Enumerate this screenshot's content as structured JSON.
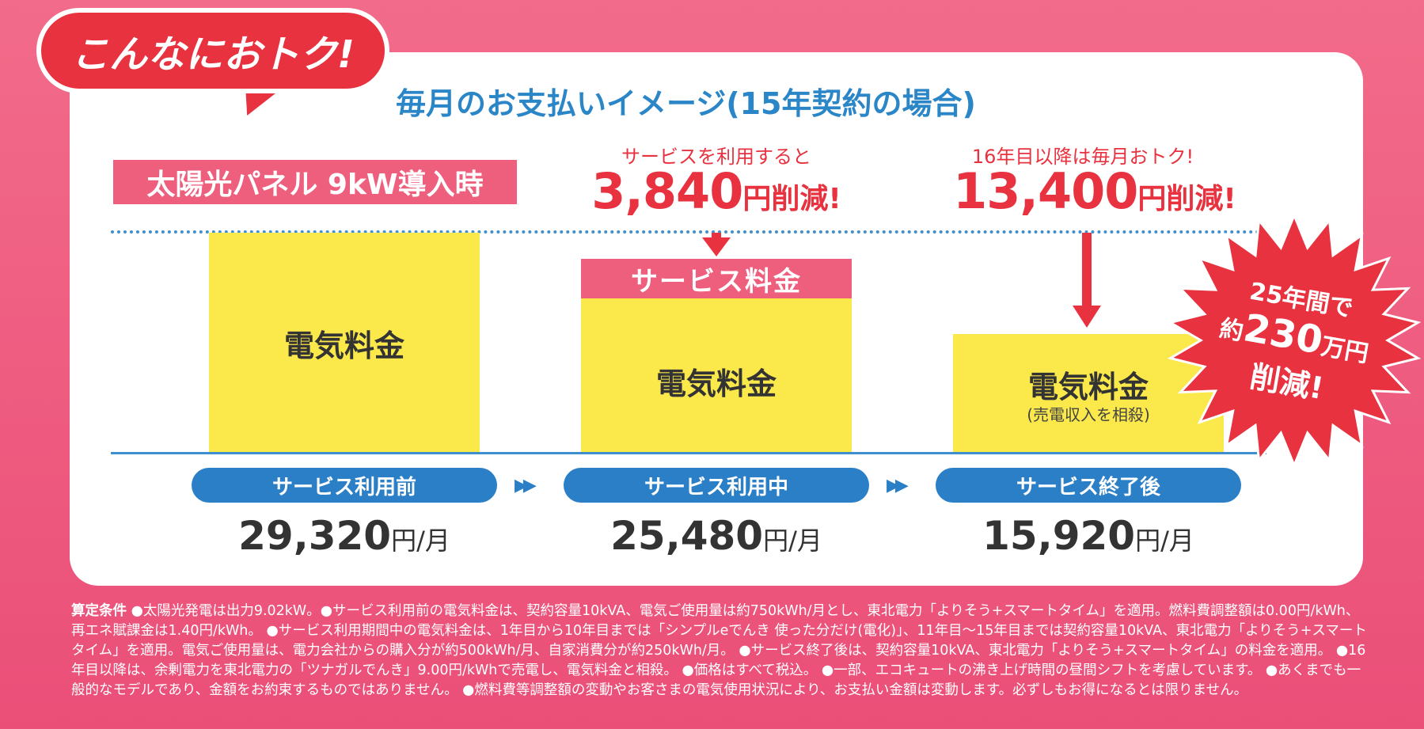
{
  "badge": "こんなにおトク!",
  "title": "毎月のお支払いイメージ(15年契約の場合)",
  "spec_label": "太陽光パネル 9kW導入時",
  "saving_mid": {
    "caption": "サービスを利用すると",
    "amount": "3,840",
    "suffix": "円削減!"
  },
  "saving_right": {
    "caption": "16年目以降は毎月おトク!",
    "amount": "13,400",
    "suffix": "円削減!"
  },
  "bars": {
    "before_label": "電気料金",
    "during_label": "電気料金",
    "service_label": "サービス料金",
    "after_label": "電気料金",
    "after_sub": "(売電収入を相殺)"
  },
  "stages": [
    {
      "label": "サービス利用前",
      "price": "29,320",
      "unit": "円/月"
    },
    {
      "label": "サービス利用中",
      "price": "25,480",
      "unit": "円/月"
    },
    {
      "label": "サービス終了後",
      "price": "15,920",
      "unit": "円/月"
    }
  ],
  "chevron": "▶▶",
  "burst": {
    "line1": "25年間で",
    "line2_prefix": "約",
    "line2_num": "230",
    "line2_suffix": "万円",
    "line3": "削減!"
  },
  "footnote": {
    "lead": "算定条件",
    "body": " ●太陽光発電は出力9.02kW。●サービス利用前の電気料金は、契約容量10kVA、電気ご使用量は約750kWh/月とし、東北電力「よりそう+スマートタイム」を適用。燃料費調整額は0.00円/kWh、再エネ賦課金は1.40円/kWh。 ●サービス利用期間中の電気料金は、1年目から10年目までは「シンプルeでんき 使った分だけ(電化)」、11年目〜15年目までは契約容量10kVA、東北電力「よりそう+スマートタイム」を適用。電気ご使用量は、電力会社からの購入分が約500kWh/月、自家消費分が約250kWh/月。 ●サービス終了後は、契約容量10kVA、東北電力「よりそう+スマートタイム」の料金を適用。 ●16年目以降は、余剰電力を東北電力の「ツナガルでんき」9.00円/kWhで売電し、電気料金と相殺。 ●価格はすべて税込。 ●一部、エコキュートの沸き上げ時間の昼間シフトを考慮しています。 ●あくまでも一般的なモデルであり、金額をお約束するものではありません。 ●燃料費等調整額の変動やお客さまの電気使用状況により、お支払い金額は変動します。必ずしもお得になるとは限りません。"
  },
  "colors": {
    "background_pink": "#ee5a7f",
    "accent_red": "#e8323f",
    "bar_yellow": "#fbe84b",
    "label_pink": "#ee5f7e",
    "blue": "#2a7fc6"
  }
}
